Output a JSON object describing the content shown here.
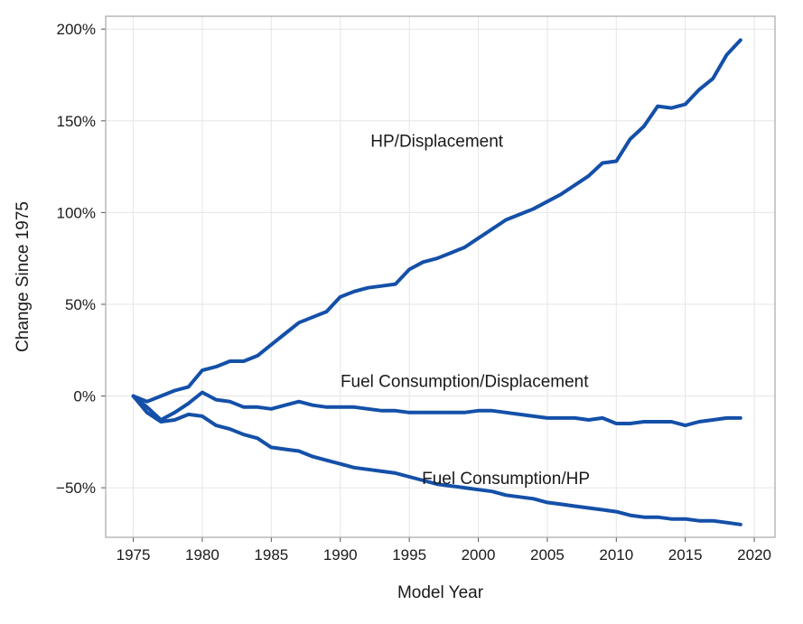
{
  "chart_data": {
    "type": "line",
    "title": "",
    "xlabel": "Model Year",
    "ylabel": "Change Since 1975",
    "xlim": [
      1973,
      2021.5
    ],
    "ylim": [
      -77,
      207
    ],
    "x_ticks": [
      1975,
      1980,
      1985,
      1990,
      1995,
      2000,
      2005,
      2010,
      2015,
      2020
    ],
    "x_tick_labels": [
      "1975",
      "1980",
      "1985",
      "1990",
      "1995",
      "2000",
      "2005",
      "2010",
      "2015",
      "2020"
    ],
    "y_ticks": [
      -50,
      0,
      50,
      100,
      150,
      200
    ],
    "y_tick_labels": [
      "−50%",
      "0%",
      "50%",
      "100%",
      "150%",
      "200%"
    ],
    "grid": true,
    "line_color": "#1450a8",
    "series": [
      {
        "name": "HP/Displacement",
        "x": [
          1975,
          1976,
          1977,
          1978,
          1979,
          1980,
          1981,
          1982,
          1983,
          1984,
          1985,
          1986,
          1987,
          1988,
          1989,
          1990,
          1991,
          1992,
          1993,
          1994,
          1995,
          1996,
          1997,
          1998,
          1999,
          2000,
          2001,
          2002,
          2003,
          2004,
          2005,
          2006,
          2007,
          2008,
          2009,
          2010,
          2011,
          2012,
          2013,
          2014,
          2015,
          2016,
          2017,
          2018,
          2019
        ],
        "y": [
          0,
          -3,
          0,
          3,
          5,
          14,
          16,
          19,
          19,
          22,
          28,
          34,
          40,
          43,
          46,
          54,
          57,
          59,
          60,
          61,
          69,
          73,
          75,
          78,
          81,
          86,
          91,
          96,
          99,
          102,
          106,
          110,
          115,
          120,
          127,
          128,
          140,
          147,
          158,
          157,
          159,
          167,
          173,
          186,
          194
        ]
      },
      {
        "name": "Fuel Consumption/Displacement",
        "x": [
          1975,
          1976,
          1977,
          1978,
          1979,
          1980,
          1981,
          1982,
          1983,
          1984,
          1985,
          1986,
          1987,
          1988,
          1989,
          1990,
          1991,
          1992,
          1993,
          1994,
          1995,
          1996,
          1997,
          1998,
          1999,
          2000,
          2001,
          2002,
          2003,
          2004,
          2005,
          2006,
          2007,
          2008,
          2009,
          2010,
          2011,
          2012,
          2013,
          2014,
          2015,
          2016,
          2017,
          2018,
          2019
        ],
        "y": [
          0,
          -6,
          -13,
          -9,
          -4,
          2,
          -2,
          -3,
          -6,
          -6,
          -7,
          -5,
          -3,
          -5,
          -6,
          -6,
          -6,
          -7,
          -8,
          -8,
          -9,
          -9,
          -9,
          -9,
          -9,
          -8,
          -8,
          -9,
          -10,
          -11,
          -12,
          -12,
          -12,
          -13,
          -12,
          -15,
          -15,
          -14,
          -14,
          -14,
          -16,
          -14,
          -13,
          -12,
          -12
        ]
      },
      {
        "name": "Fuel Consumption/HP",
        "x": [
          1975,
          1976,
          1977,
          1978,
          1979,
          1980,
          1981,
          1982,
          1983,
          1984,
          1985,
          1986,
          1987,
          1988,
          1989,
          1990,
          1991,
          1992,
          1993,
          1994,
          1995,
          1996,
          1997,
          1998,
          1999,
          2000,
          2001,
          2002,
          2003,
          2004,
          2005,
          2006,
          2007,
          2008,
          2009,
          2010,
          2011,
          2012,
          2013,
          2014,
          2015,
          2016,
          2017,
          2018,
          2019
        ],
        "y": [
          0,
          -9,
          -14,
          -13,
          -10,
          -11,
          -16,
          -18,
          -21,
          -23,
          -28,
          -29,
          -30,
          -33,
          -35,
          -37,
          -39,
          -40,
          -41,
          -42,
          -44,
          -46,
          -48,
          -49,
          -50,
          -51,
          -52,
          -54,
          -55,
          -56,
          -58,
          -59,
          -60,
          -61,
          -62,
          -63,
          -65,
          -66,
          -66,
          -67,
          -67,
          -68,
          -68,
          -69,
          -70
        ]
      }
    ],
    "annotations": [
      {
        "text": "HP/Displacement",
        "x": 1997,
        "y": 136
      },
      {
        "text": "Fuel Consumption/Displacement",
        "x": 1999,
        "y": 5
      },
      {
        "text": "Fuel Consumption/HP",
        "x": 2002,
        "y": -48
      }
    ]
  }
}
